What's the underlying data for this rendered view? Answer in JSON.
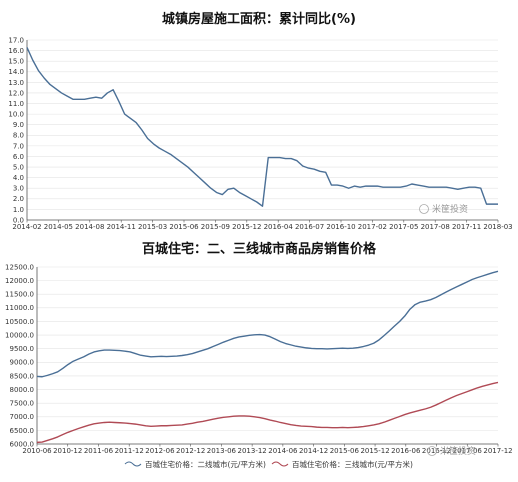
{
  "chart_data": [
    {
      "type": "line",
      "title": "城镇房屋施工面积：累计同比(%)",
      "xlabel": "",
      "ylabel": "",
      "ylim": [
        0,
        17
      ],
      "y_ticks": [
        "0.0",
        "1.0",
        "2.0",
        "3.0",
        "4.0",
        "5.0",
        "6.0",
        "7.0",
        "8.0",
        "9.0",
        "10.0",
        "11.0",
        "12.0",
        "13.0",
        "14.0",
        "15.0",
        "16.0",
        "17.0"
      ],
      "x_ticks": [
        "2014-02",
        "2014-05",
        "2014-08",
        "2014-11",
        "2015-03",
        "2015-06",
        "2015-09",
        "2015-12",
        "2016-04",
        "2016-07",
        "2016-10",
        "2017-02",
        "2017-05",
        "2017-08",
        "2017-11",
        "2018-03"
      ],
      "grid": "horizontal",
      "line_color": "#4a6f96",
      "series": [
        {
          "values": [
            16.3,
            15.1,
            14.1,
            13.4,
            12.8,
            12.4,
            12.0,
            11.7,
            11.4,
            11.4,
            11.4,
            11.5,
            11.6,
            11.5,
            12.0,
            12.3,
            11.2,
            10.0,
            9.6,
            9.2,
            8.5,
            7.7,
            7.2,
            6.8,
            6.5,
            6.2,
            5.8,
            5.4,
            5.0,
            4.5,
            4.0,
            3.5,
            3.0,
            2.6,
            2.4,
            2.9,
            3.0,
            2.6,
            2.3,
            2.0,
            1.7,
            1.3,
            5.9,
            5.9,
            5.9,
            5.8,
            5.8,
            5.6,
            5.1,
            4.9,
            4.8,
            4.6,
            4.5,
            3.3,
            3.3,
            3.2,
            3.0,
            3.2,
            3.1,
            3.2,
            3.2,
            3.2,
            3.1,
            3.1,
            3.1,
            3.1,
            3.2,
            3.4,
            3.3,
            3.2,
            3.1,
            3.1,
            3.1,
            3.1,
            3.0,
            2.9,
            3.0,
            3.1,
            3.1,
            3.0,
            1.5,
            1.5,
            1.5
          ]
        }
      ],
      "watermark": "米筐投资"
    },
    {
      "type": "line",
      "title": "百城住宅：二、三线城市商品房销售价格",
      "xlabel": "",
      "ylabel": "",
      "ylim": [
        6000,
        12500
      ],
      "y_ticks": [
        "6000.0",
        "6500.0",
        "7000.0",
        "7500.0",
        "8000.0",
        "8500.0",
        "9000.0",
        "9500.0",
        "10000.0",
        "10500.0",
        "11000.0",
        "11500.0",
        "12000.0",
        "12500.0"
      ],
      "x_ticks": [
        "2010-06",
        "2010-12",
        "2011-06",
        "2011-12",
        "2012-06",
        "2012-12",
        "2013-06",
        "2013-12",
        "2014-06",
        "2014-12",
        "2015-06",
        "2015-12",
        "2016-06",
        "2016-12",
        "2017-06",
        "2017-12"
      ],
      "legend_position": "bottom",
      "grid": "horizontal",
      "series": [
        {
          "name": "百城住宅价格：二线城市(元/平方米)",
          "color": "#4a6f96",
          "values": [
            8480,
            8470,
            8520,
            8580,
            8650,
            8780,
            8920,
            9040,
            9120,
            9200,
            9300,
            9380,
            9420,
            9450,
            9450,
            9440,
            9430,
            9410,
            9380,
            9320,
            9260,
            9230,
            9200,
            9210,
            9220,
            9210,
            9220,
            9230,
            9250,
            9280,
            9320,
            9380,
            9440,
            9500,
            9580,
            9660,
            9740,
            9810,
            9880,
            9930,
            9960,
            9990,
            10010,
            10020,
            10000,
            9940,
            9850,
            9760,
            9690,
            9640,
            9590,
            9560,
            9530,
            9510,
            9500,
            9500,
            9490,
            9500,
            9510,
            9520,
            9510,
            9520,
            9540,
            9580,
            9630,
            9700,
            9820,
            9980,
            10150,
            10330,
            10500,
            10700,
            10950,
            11120,
            11210,
            11250,
            11300,
            11380,
            11480,
            11580,
            11680,
            11770,
            11860,
            11950,
            12040,
            12110,
            12170,
            12230,
            12290,
            12340
          ]
        },
        {
          "name": "百城住宅价格：三线城市(元/平方米)",
          "color": "#b04a55",
          "values": [
            6060,
            6070,
            6130,
            6190,
            6260,
            6350,
            6430,
            6500,
            6570,
            6630,
            6690,
            6740,
            6770,
            6790,
            6800,
            6790,
            6780,
            6770,
            6750,
            6730,
            6700,
            6670,
            6650,
            6660,
            6670,
            6670,
            6680,
            6690,
            6700,
            6730,
            6760,
            6800,
            6830,
            6870,
            6910,
            6950,
            6980,
            7000,
            7020,
            7030,
            7030,
            7020,
            7000,
            6970,
            6930,
            6880,
            6840,
            6790,
            6750,
            6710,
            6680,
            6660,
            6650,
            6640,
            6620,
            6610,
            6610,
            6600,
            6600,
            6610,
            6600,
            6610,
            6620,
            6640,
            6670,
            6700,
            6740,
            6800,
            6870,
            6940,
            7010,
            7080,
            7140,
            7190,
            7240,
            7290,
            7350,
            7430,
            7520,
            7610,
            7700,
            7780,
            7850,
            7920,
            7990,
            8060,
            8120,
            8170,
            8220,
            8260
          ]
        }
      ],
      "watermark": "米筐投资"
    }
  ]
}
